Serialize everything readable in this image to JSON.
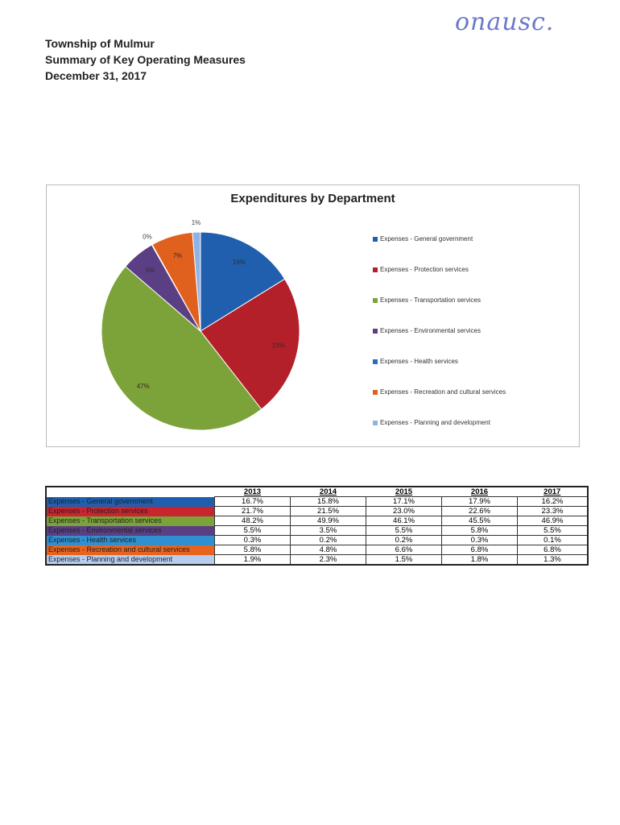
{
  "signature": "onausc.",
  "header": {
    "line1": "Township of Mulmur",
    "line2": "Summary of Key Operating Measures",
    "line3": "December 31, 2017"
  },
  "chart_data": {
    "type": "pie",
    "title": "Expenditures by Department",
    "legend_position": "right",
    "categories": [
      "Expenses - General government",
      "Expenses - Protection services",
      "Expenses - Transportation services",
      "Expenses - Environmental services",
      "Expenses - Health services",
      "Expenses - Recreation and cultural services",
      "Expenses - Planning and development"
    ],
    "values": [
      16.2,
      23.3,
      46.9,
      5.5,
      0.1,
      6.8,
      1.3
    ],
    "data_labels": [
      "16%",
      "23%",
      "47%",
      "5%",
      "0%",
      "7%",
      "1%"
    ],
    "colors": [
      "#1f5fae",
      "#b3202a",
      "#7ba33a",
      "#5a3f85",
      "#2a6cc0",
      "#e0611e",
      "#8fb4e3"
    ]
  },
  "table": {
    "years": [
      "2013",
      "2014",
      "2015",
      "2016",
      "2017"
    ],
    "rows": [
      {
        "label": "Expenses - General government",
        "color": "#1f5fae",
        "values": [
          "16.7%",
          "15.8%",
          "17.1%",
          "17.9%",
          "16.2%"
        ]
      },
      {
        "label": "Expenses - Protection services",
        "color": "#c8252e",
        "values": [
          "21.7%",
          "21.5%",
          "23.0%",
          "22.6%",
          "23.3%"
        ]
      },
      {
        "label": "Expenses - Transportation services",
        "color": "#7ba33a",
        "values": [
          "48.2%",
          "49.9%",
          "46.1%",
          "45.5%",
          "46.9%"
        ]
      },
      {
        "label": "Expenses - Environmental services",
        "color": "#5a3f85",
        "values": [
          "5.5%",
          "3.5%",
          "5.5%",
          "5.8%",
          "5.5%"
        ]
      },
      {
        "label": "Expenses - Health services",
        "color": "#2f8fd0",
        "values": [
          "0.3%",
          "0.2%",
          "0.2%",
          "0.3%",
          "0.1%"
        ]
      },
      {
        "label": "Expenses - Recreation and cultural services",
        "color": "#e8641e",
        "values": [
          "5.8%",
          "4.8%",
          "6.6%",
          "6.8%",
          "6.8%"
        ]
      },
      {
        "label": "Expenses - Planning and development",
        "color": "#b7cdf0",
        "values": [
          "1.9%",
          "2.3%",
          "1.5%",
          "1.8%",
          "1.3%"
        ]
      }
    ]
  }
}
